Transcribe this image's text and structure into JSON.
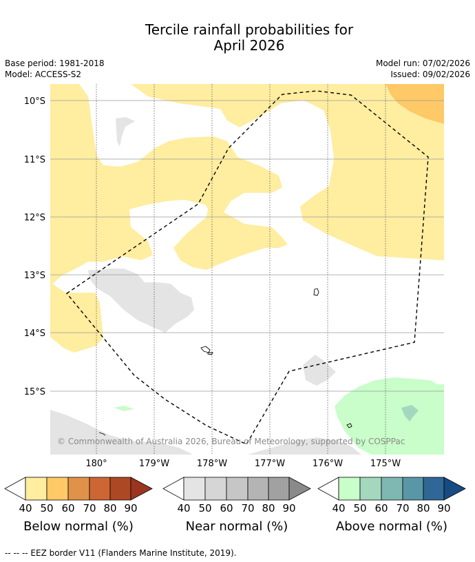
{
  "title": {
    "line1": "Tercile rainfall probabilities for",
    "line2": "April 2026"
  },
  "meta": {
    "base_period": "Base period: 1981-2018",
    "model": "Model: ACCESS-S2",
    "model_run": "Model run: 07/02/2026",
    "issued": "Issued: 09/02/2026"
  },
  "map": {
    "lat_labels": [
      "10°S",
      "11°S",
      "12°S",
      "13°S",
      "14°S",
      "15°S"
    ],
    "lon_labels": [
      "180°",
      "179°W",
      "178°W",
      "177°W",
      "176°W",
      "175°W"
    ],
    "copyright": "© Commonwealth of Australia 2026, Bureau of Meteorology, supported by COSPPac",
    "colors": {
      "below_40_50": "#ffeda0",
      "below_50_60": "#fec966",
      "near_40_50": "#e4e4e4",
      "above_40_50": "#c9fdc9",
      "above_50_60": "#a3d8bf",
      "eez_line": "#000000"
    }
  },
  "colorbars": [
    {
      "title": "Below normal (%)",
      "ticks": [
        "40",
        "50",
        "60",
        "70",
        "80",
        "90"
      ],
      "colors": [
        "#ffeda0",
        "#fec966",
        "#e0924a",
        "#cc6733",
        "#ad4824",
        "#9b3520"
      ]
    },
    {
      "title": "Near normal (%)",
      "ticks": [
        "40",
        "50",
        "60",
        "70",
        "80",
        "90"
      ],
      "colors": [
        "#e4e4e4",
        "#d6d6d6",
        "#c6c6c6",
        "#b4b4b4",
        "#a1a1a1",
        "#8a8a8a"
      ]
    },
    {
      "title": "Above normal (%)",
      "ticks": [
        "40",
        "50",
        "60",
        "70",
        "80",
        "90"
      ],
      "colors": [
        "#c9fdc9",
        "#a3d8bf",
        "#7fb8b3",
        "#5a97a6",
        "#306797",
        "#174b81"
      ]
    }
  ],
  "footnote": "--  --  -- EEZ border V11 (Flanders Marine Institute, 2019)."
}
